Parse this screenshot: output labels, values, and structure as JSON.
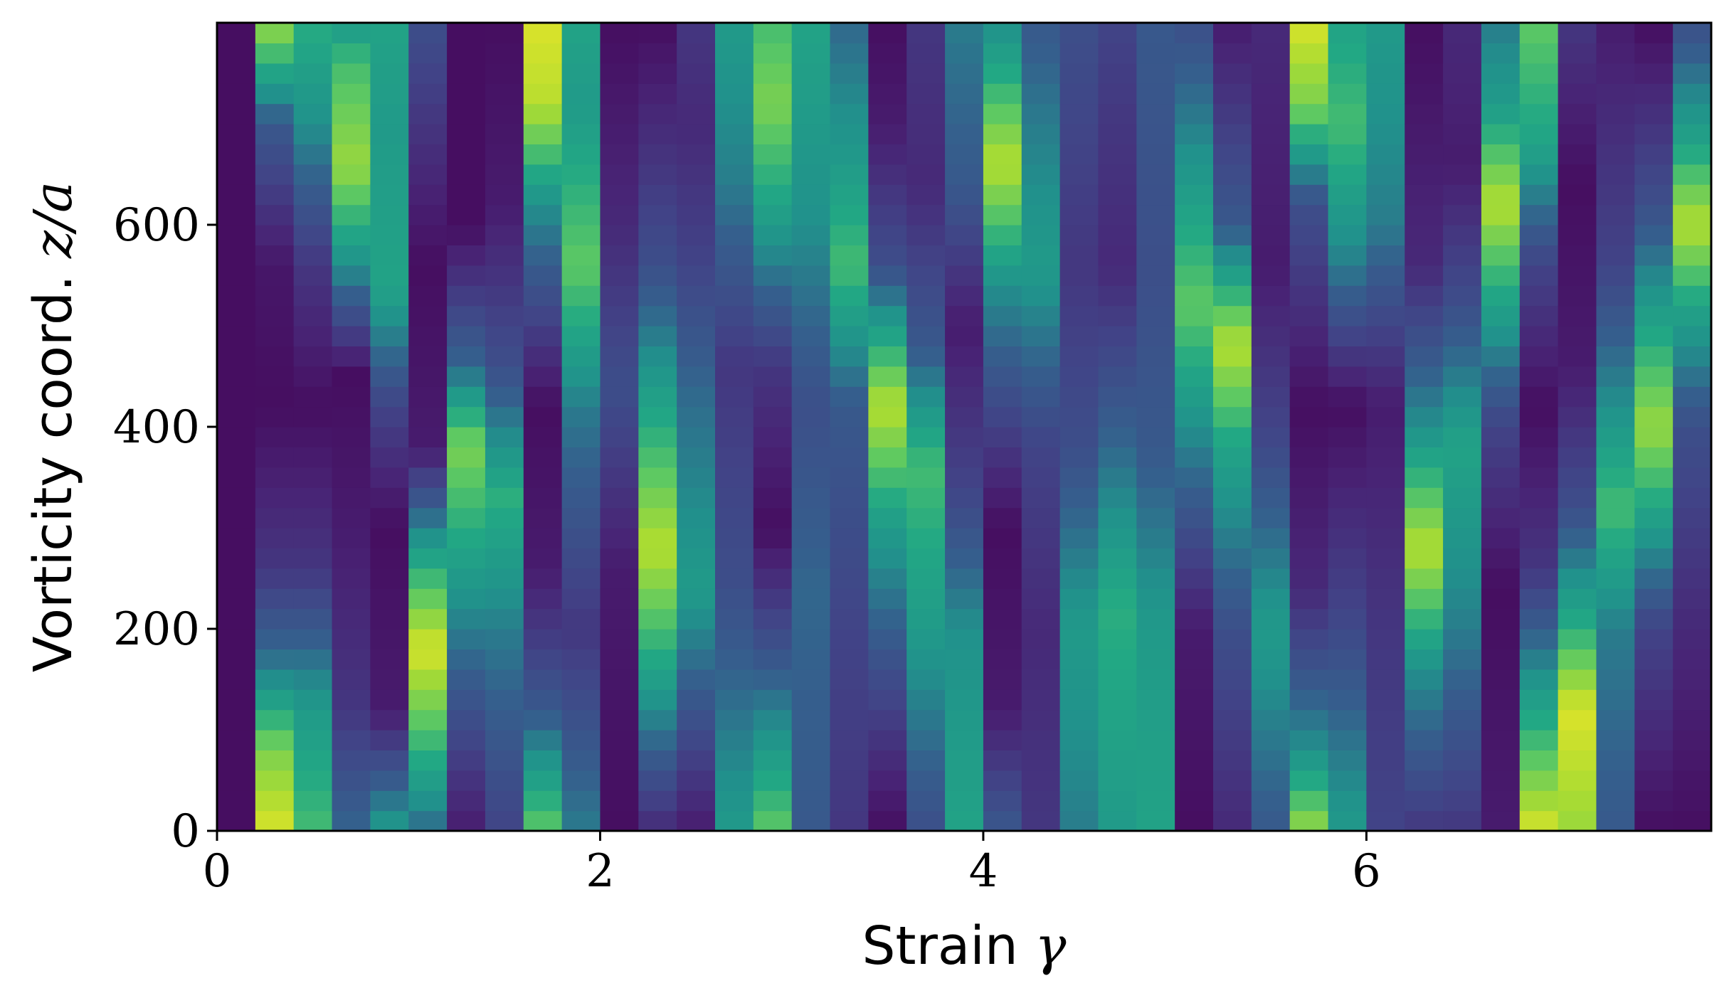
{
  "chart_data": {
    "type": "heatmap",
    "title": "",
    "xlabel_text": "Strain",
    "xlabel_symbol": "γ",
    "ylabel_text": "Vorticity coord.",
    "ylabel_symbol": "z/a",
    "xlim": [
      0,
      7.8
    ],
    "ylim": [
      0,
      800
    ],
    "xticks": [
      0,
      2,
      4,
      6
    ],
    "yticks": [
      0,
      200,
      400,
      600
    ],
    "x_bin_width": 0.2,
    "y_bin_height": 20,
    "colormap": "viridis",
    "value_range": [
      0,
      1
    ],
    "legend": "none",
    "grid": false,
    "columns": [
      {
        "x_start": 0.0,
        "profile": [
          [
            0,
            0.05
          ],
          [
            800,
            0.05
          ]
        ]
      },
      {
        "x_start": 0.2,
        "profile": [
          [
            0,
            0.95
          ],
          [
            80,
            0.8
          ],
          [
            160,
            0.45
          ],
          [
            260,
            0.2
          ],
          [
            420,
            0.05
          ],
          [
            560,
            0.08
          ],
          [
            700,
            0.35
          ],
          [
            800,
            0.85
          ]
        ]
      },
      {
        "x_start": 0.4,
        "profile": [
          [
            0,
            0.7
          ],
          [
            120,
            0.55
          ],
          [
            260,
            0.2
          ],
          [
            420,
            0.05
          ],
          [
            560,
            0.2
          ],
          [
            700,
            0.5
          ],
          [
            800,
            0.65
          ]
        ]
      },
      {
        "x_start": 0.6,
        "profile": [
          [
            0,
            0.4
          ],
          [
            120,
            0.2
          ],
          [
            300,
            0.1
          ],
          [
            450,
            0.05
          ],
          [
            560,
            0.5
          ],
          [
            660,
            0.85
          ],
          [
            760,
            0.7
          ],
          [
            800,
            0.55
          ]
        ]
      },
      {
        "x_start": 0.8,
        "profile": [
          [
            0,
            0.55
          ],
          [
            120,
            0.1
          ],
          [
            300,
            0.05
          ],
          [
            420,
            0.25
          ],
          [
            540,
            0.6
          ],
          [
            700,
            0.55
          ],
          [
            800,
            0.6
          ]
        ]
      },
      {
        "x_start": 1.0,
        "profile": [
          [
            0,
            0.4
          ],
          [
            60,
            0.6
          ],
          [
            180,
            0.95
          ],
          [
            260,
            0.65
          ],
          [
            380,
            0.1
          ],
          [
            560,
            0.05
          ],
          [
            800,
            0.3
          ]
        ]
      },
      {
        "x_start": 1.2,
        "profile": [
          [
            0,
            0.1
          ],
          [
            200,
            0.45
          ],
          [
            380,
            0.8
          ],
          [
            460,
            0.4
          ],
          [
            600,
            0.05
          ],
          [
            800,
            0.05
          ]
        ]
      },
      {
        "x_start": 1.4,
        "profile": [
          [
            0,
            0.25
          ],
          [
            200,
            0.45
          ],
          [
            330,
            0.65
          ],
          [
            460,
            0.3
          ],
          [
            620,
            0.1
          ],
          [
            800,
            0.05
          ]
        ]
      },
      {
        "x_start": 1.6,
        "profile": [
          [
            0,
            0.75
          ],
          [
            120,
            0.35
          ],
          [
            260,
            0.1
          ],
          [
            420,
            0.05
          ],
          [
            620,
            0.5
          ],
          [
            720,
            0.9
          ],
          [
            800,
            0.95
          ]
        ]
      },
      {
        "x_start": 1.8,
        "profile": [
          [
            0,
            0.45
          ],
          [
            200,
            0.2
          ],
          [
            420,
            0.45
          ],
          [
            560,
            0.75
          ],
          [
            720,
            0.55
          ],
          [
            800,
            0.6
          ]
        ]
      },
      {
        "x_start": 2.0,
        "profile": [
          [
            0,
            0.05
          ],
          [
            260,
            0.1
          ],
          [
            440,
            0.3
          ],
          [
            600,
            0.15
          ],
          [
            800,
            0.05
          ]
        ]
      },
      {
        "x_start": 2.2,
        "profile": [
          [
            0,
            0.15
          ],
          [
            160,
            0.6
          ],
          [
            280,
            0.9
          ],
          [
            420,
            0.6
          ],
          [
            560,
            0.3
          ],
          [
            800,
            0.05
          ]
        ]
      },
      {
        "x_start": 2.4,
        "profile": [
          [
            0,
            0.1
          ],
          [
            240,
            0.55
          ],
          [
            440,
            0.4
          ],
          [
            560,
            0.25
          ],
          [
            700,
            0.15
          ],
          [
            800,
            0.2
          ]
        ]
      },
      {
        "x_start": 2.6,
        "profile": [
          [
            0,
            0.55
          ],
          [
            240,
            0.3
          ],
          [
            460,
            0.2
          ],
          [
            640,
            0.45
          ],
          [
            800,
            0.55
          ]
        ]
      },
      {
        "x_start": 2.8,
        "profile": [
          [
            0,
            0.75
          ],
          [
            100,
            0.5
          ],
          [
            300,
            0.05
          ],
          [
            460,
            0.2
          ],
          [
            620,
            0.6
          ],
          [
            720,
            0.8
          ],
          [
            800,
            0.7
          ]
        ]
      },
      {
        "x_start": 3.0,
        "profile": [
          [
            0,
            0.35
          ],
          [
            240,
            0.4
          ],
          [
            420,
            0.3
          ],
          [
            600,
            0.5
          ],
          [
            800,
            0.6
          ]
        ]
      },
      {
        "x_start": 3.2,
        "profile": [
          [
            0,
            0.2
          ],
          [
            200,
            0.25
          ],
          [
            420,
            0.35
          ],
          [
            560,
            0.7
          ],
          [
            660,
            0.55
          ],
          [
            800,
            0.4
          ]
        ]
      },
      {
        "x_start": 3.4,
        "profile": [
          [
            0,
            0.05
          ],
          [
            160,
            0.3
          ],
          [
            300,
            0.55
          ],
          [
            420,
            0.9
          ],
          [
            560,
            0.3
          ],
          [
            700,
            0.1
          ],
          [
            800,
            0.05
          ]
        ]
      },
      {
        "x_start": 3.6,
        "profile": [
          [
            0,
            0.3
          ],
          [
            200,
            0.55
          ],
          [
            360,
            0.7
          ],
          [
            480,
            0.35
          ],
          [
            640,
            0.15
          ],
          [
            800,
            0.2
          ]
        ]
      },
      {
        "x_start": 3.8,
        "profile": [
          [
            0,
            0.6
          ],
          [
            200,
            0.5
          ],
          [
            340,
            0.25
          ],
          [
            500,
            0.1
          ],
          [
            640,
            0.35
          ],
          [
            800,
            0.45
          ]
        ]
      },
      {
        "x_start": 4.0,
        "profile": [
          [
            0,
            0.35
          ],
          [
            120,
            0.1
          ],
          [
            300,
            0.05
          ],
          [
            540,
            0.5
          ],
          [
            660,
            0.9
          ],
          [
            760,
            0.6
          ],
          [
            800,
            0.5
          ]
        ]
      },
      {
        "x_start": 4.2,
        "profile": [
          [
            0,
            0.2
          ],
          [
            200,
            0.15
          ],
          [
            380,
            0.25
          ],
          [
            560,
            0.55
          ],
          [
            700,
            0.45
          ],
          [
            800,
            0.35
          ]
        ]
      },
      {
        "x_start": 4.4,
        "profile": [
          [
            0,
            0.45
          ],
          [
            200,
            0.55
          ],
          [
            380,
            0.3
          ],
          [
            560,
            0.2
          ],
          [
            800,
            0.3
          ]
        ]
      },
      {
        "x_start": 4.6,
        "profile": [
          [
            0,
            0.55
          ],
          [
            220,
            0.65
          ],
          [
            380,
            0.4
          ],
          [
            560,
            0.15
          ],
          [
            700,
            0.2
          ],
          [
            800,
            0.25
          ]
        ]
      },
      {
        "x_start": 4.8,
        "profile": [
          [
            0,
            0.6
          ],
          [
            200,
            0.55
          ],
          [
            380,
            0.35
          ],
          [
            560,
            0.3
          ],
          [
            800,
            0.35
          ]
        ]
      },
      {
        "x_start": 5.0,
        "profile": [
          [
            0,
            0.05
          ],
          [
            200,
            0.1
          ],
          [
            400,
            0.5
          ],
          [
            520,
            0.75
          ],
          [
            640,
            0.55
          ],
          [
            800,
            0.3
          ]
        ]
      },
      {
        "x_start": 5.2,
        "profile": [
          [
            0,
            0.15
          ],
          [
            200,
            0.3
          ],
          [
            380,
            0.6
          ],
          [
            480,
            0.9
          ],
          [
            600,
            0.35
          ],
          [
            800,
            0.1
          ]
        ]
      },
      {
        "x_start": 5.4,
        "profile": [
          [
            0,
            0.35
          ],
          [
            200,
            0.55
          ],
          [
            400,
            0.25
          ],
          [
            560,
            0.1
          ],
          [
            800,
            0.15
          ]
        ]
      },
      {
        "x_start": 5.6,
        "profile": [
          [
            0,
            0.85
          ],
          [
            80,
            0.5
          ],
          [
            240,
            0.15
          ],
          [
            420,
            0.05
          ],
          [
            620,
            0.3
          ],
          [
            720,
            0.8
          ],
          [
            800,
            0.95
          ]
        ]
      },
      {
        "x_start": 5.8,
        "profile": [
          [
            0,
            0.55
          ],
          [
            220,
            0.25
          ],
          [
            420,
            0.05
          ],
          [
            560,
            0.45
          ],
          [
            700,
            0.7
          ],
          [
            800,
            0.6
          ]
        ]
      },
      {
        "x_start": 6.0,
        "profile": [
          [
            0,
            0.25
          ],
          [
            200,
            0.2
          ],
          [
            420,
            0.1
          ],
          [
            600,
            0.45
          ],
          [
            800,
            0.55
          ]
        ]
      },
      {
        "x_start": 6.2,
        "profile": [
          [
            0,
            0.2
          ],
          [
            160,
            0.5
          ],
          [
            280,
            0.9
          ],
          [
            400,
            0.5
          ],
          [
            560,
            0.15
          ],
          [
            800,
            0.05
          ]
        ]
      },
      {
        "x_start": 6.4,
        "profile": [
          [
            0,
            0.2
          ],
          [
            200,
            0.45
          ],
          [
            380,
            0.6
          ],
          [
            520,
            0.3
          ],
          [
            660,
            0.1
          ],
          [
            800,
            0.15
          ]
        ]
      },
      {
        "x_start": 6.6,
        "profile": [
          [
            0,
            0.1
          ],
          [
            240,
            0.05
          ],
          [
            400,
            0.25
          ],
          [
            560,
            0.7
          ],
          [
            620,
            0.9
          ],
          [
            720,
            0.55
          ],
          [
            800,
            0.45
          ]
        ]
      },
      {
        "x_start": 6.8,
        "profile": [
          [
            0,
            0.95
          ],
          [
            120,
            0.6
          ],
          [
            260,
            0.2
          ],
          [
            420,
            0.05
          ],
          [
            560,
            0.25
          ],
          [
            680,
            0.6
          ],
          [
            800,
            0.75
          ]
        ]
      },
      {
        "x_start": 7.0,
        "profile": [
          [
            0,
            0.85
          ],
          [
            120,
            0.95
          ],
          [
            200,
            0.65
          ],
          [
            320,
            0.3
          ],
          [
            460,
            0.1
          ],
          [
            640,
            0.05
          ],
          [
            800,
            0.2
          ]
        ]
      },
      {
        "x_start": 7.2,
        "profile": [
          [
            0,
            0.35
          ],
          [
            200,
            0.45
          ],
          [
            320,
            0.7
          ],
          [
            420,
            0.5
          ],
          [
            560,
            0.25
          ],
          [
            800,
            0.1
          ]
        ]
      },
      {
        "x_start": 7.4,
        "profile": [
          [
            0,
            0.05
          ],
          [
            200,
            0.25
          ],
          [
            400,
            0.85
          ],
          [
            500,
            0.6
          ],
          [
            620,
            0.3
          ],
          [
            800,
            0.05
          ]
        ]
      },
      {
        "x_start": 7.6,
        "profile": [
          [
            0,
            0.05
          ],
          [
            200,
            0.15
          ],
          [
            400,
            0.3
          ],
          [
            520,
            0.6
          ],
          [
            600,
            0.9
          ],
          [
            680,
            0.6
          ],
          [
            800,
            0.3
          ]
        ]
      }
    ]
  }
}
